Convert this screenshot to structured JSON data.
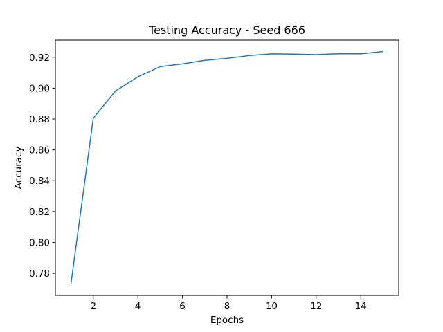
{
  "chart_data": {
    "type": "line",
    "title": "Testing Accuracy - Seed 666",
    "xlabel": "Epochs",
    "ylabel": "Accuracy",
    "xlim": [
      0.3,
      15.7
    ],
    "ylim": [
      0.7657,
      0.9311
    ],
    "x_ticks": [
      2,
      4,
      6,
      8,
      10,
      12,
      14
    ],
    "x_tick_labels": [
      "2",
      "4",
      "6",
      "8",
      "10",
      "12",
      "14"
    ],
    "y_ticks": [
      0.78,
      0.8,
      0.82,
      0.84,
      0.86,
      0.88,
      0.9,
      0.92
    ],
    "y_tick_labels": [
      "0.78",
      "0.80",
      "0.82",
      "0.84",
      "0.86",
      "0.88",
      "0.90",
      "0.92"
    ],
    "grid": false,
    "series": [
      {
        "color": "#1f77b4",
        "x": [
          1,
          2,
          3,
          4,
          5,
          6,
          7,
          8,
          9,
          10,
          11,
          12,
          13,
          14,
          15
        ],
        "y": [
          0.7733,
          0.8805,
          0.8982,
          0.9073,
          0.9139,
          0.9157,
          0.918,
          0.9193,
          0.9211,
          0.9222,
          0.922,
          0.9217,
          0.9223,
          0.9222,
          0.9237
        ]
      }
    ]
  }
}
